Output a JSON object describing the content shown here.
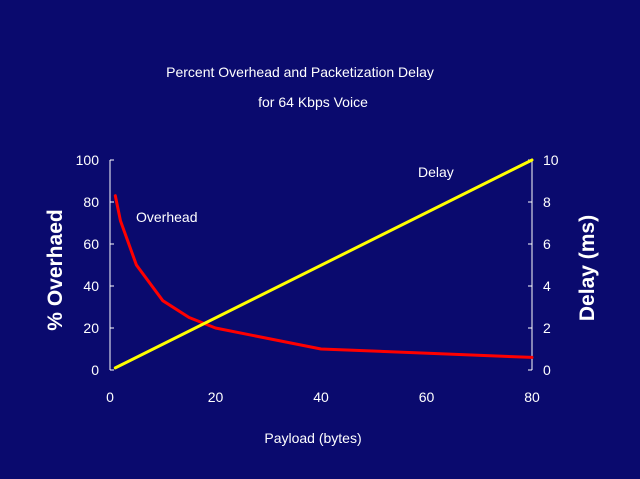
{
  "chart_data": {
    "type": "line",
    "title": "Percent Overhead and Packetization Delay",
    "subtitle": "for 64 Kbps Voice",
    "xlabel": "Payload (bytes)",
    "ylabel_left": "% Overhaed",
    "ylabel_right": "Delay (ms)",
    "xlim": [
      0,
      80
    ],
    "ylim_left": [
      0,
      100
    ],
    "ylim_right": [
      0,
      10
    ],
    "x_ticks": [
      0,
      20,
      40,
      60,
      80
    ],
    "y_left_ticks": [
      0,
      20,
      40,
      60,
      80,
      100
    ],
    "y_right_ticks": [
      0,
      2,
      4,
      6,
      8,
      10
    ],
    "grid": false,
    "series": [
      {
        "name": "Overhead",
        "axis": "left",
        "color": "#ff0000",
        "x": [
          1,
          2,
          5,
          10,
          15,
          20,
          40,
          80
        ],
        "y": [
          83,
          71,
          50,
          33,
          25,
          20,
          10,
          6
        ]
      },
      {
        "name": "Delay",
        "axis": "right",
        "color": "#ffff00",
        "x": [
          1,
          80
        ],
        "y": [
          0.1,
          10
        ]
      }
    ]
  }
}
